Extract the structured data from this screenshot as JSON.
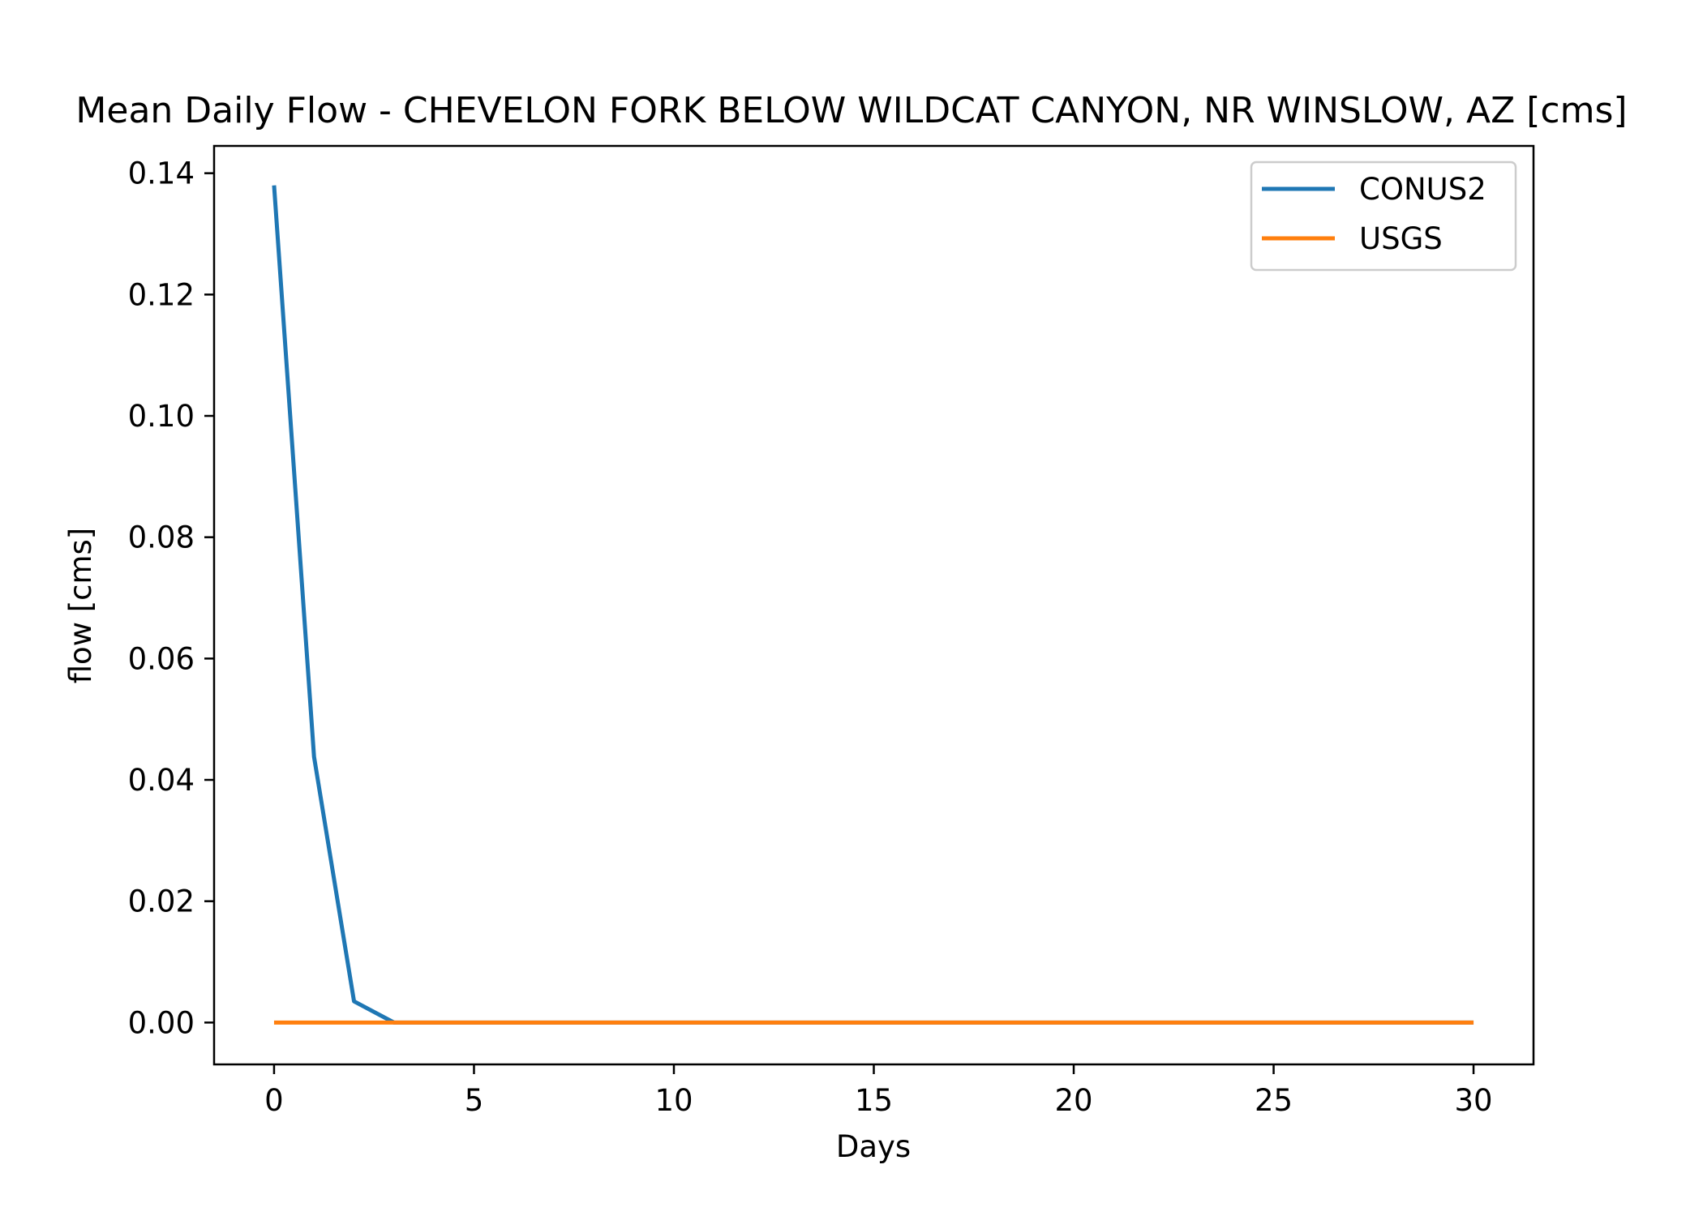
{
  "chart_data": {
    "type": "line",
    "title": "Mean Daily Flow - CHEVELON FORK BELOW WILDCAT CANYON, NR WINSLOW, AZ [cms]",
    "xlabel": "Days",
    "ylabel": "flow [cms]",
    "xlim": [
      -1.5,
      31.5
    ],
    "ylim": [
      -0.0069,
      0.1445
    ],
    "xticks": [
      0,
      5,
      10,
      15,
      20,
      25,
      30
    ],
    "xtick_labels": [
      "0",
      "5",
      "10",
      "15",
      "20",
      "25",
      "30"
    ],
    "yticks": [
      0.0,
      0.02,
      0.04,
      0.06,
      0.08,
      0.1,
      0.12,
      0.14
    ],
    "ytick_labels": [
      "0.00",
      "0.02",
      "0.04",
      "0.06",
      "0.08",
      "0.10",
      "0.12",
      "0.14"
    ],
    "grid": false,
    "legend_position": "top-right",
    "series": [
      {
        "name": "CONUS2",
        "color": "#1f77b4",
        "x": [
          0,
          1,
          2,
          3,
          4,
          5,
          6,
          7,
          8,
          9,
          10,
          11,
          12,
          13,
          14,
          15,
          16,
          17,
          18,
          19,
          20,
          21,
          22,
          23,
          24,
          25,
          26,
          27,
          28,
          29,
          30
        ],
        "y": [
          0.138,
          0.0438,
          0.0035,
          0.0,
          0.0,
          0.0,
          0.0,
          0.0,
          0.0,
          0.0,
          0.0,
          0.0,
          0.0,
          0.0,
          0.0,
          0.0,
          0.0,
          0.0,
          0.0,
          0.0,
          0.0,
          0.0,
          0.0,
          0.0,
          0.0,
          0.0,
          0.0,
          0.0,
          0.0,
          0.0,
          0.0
        ]
      },
      {
        "name": "USGS",
        "color": "#ff7f0e",
        "x": [
          0,
          1,
          2,
          3,
          4,
          5,
          6,
          7,
          8,
          9,
          10,
          11,
          12,
          13,
          14,
          15,
          16,
          17,
          18,
          19,
          20,
          21,
          22,
          23,
          24,
          25,
          26,
          27,
          28,
          29,
          30
        ],
        "y": [
          0.0,
          0.0,
          0.0,
          0.0,
          0.0,
          0.0,
          0.0,
          0.0,
          0.0,
          0.0,
          0.0,
          0.0,
          0.0,
          0.0,
          0.0,
          0.0,
          0.0,
          0.0,
          0.0,
          0.0,
          0.0,
          0.0,
          0.0,
          0.0,
          0.0,
          0.0,
          0.0,
          0.0,
          0.0,
          0.0,
          0.0
        ]
      }
    ]
  }
}
